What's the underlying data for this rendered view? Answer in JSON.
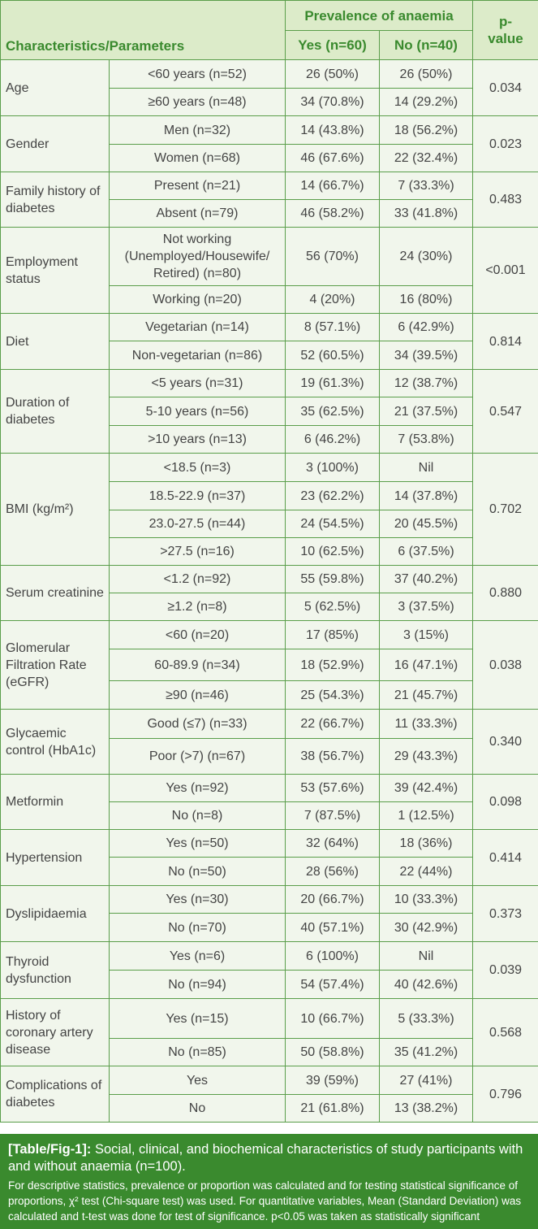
{
  "header": {
    "characteristics": "Characteristics/Parameters",
    "prevalence": "Prevalence of anaemia",
    "yes": "Yes (n=60)",
    "no": "No (n=40)",
    "pvalue": "p-\nvalue"
  },
  "groups": [
    {
      "name": "Age",
      "p": "0.034",
      "rows": [
        {
          "label": "<60 years (n=52)",
          "yes": "26 (50%)",
          "no": "26 (50%)"
        },
        {
          "label": "≥60 years (n=48)",
          "yes": "34 (70.8%)",
          "no": "14 (29.2%)"
        }
      ]
    },
    {
      "name": "Gender",
      "p": "0.023",
      "rows": [
        {
          "label": "Men (n=32)",
          "yes": "14 (43.8%)",
          "no": "18 (56.2%)"
        },
        {
          "label": "Women (n=68)",
          "yes": "46 (67.6%)",
          "no": "22 (32.4%)"
        }
      ]
    },
    {
      "name": "Family history of diabetes",
      "p": "0.483",
      "rows": [
        {
          "label": "Present (n=21)",
          "yes": "14 (66.7%)",
          "no": "7 (33.3%)"
        },
        {
          "label": "Absent (n=79)",
          "yes": "46 (58.2%)",
          "no": "33 (41.8%)"
        }
      ]
    },
    {
      "name": "Employment status",
      "p": "<0.001",
      "rows": [
        {
          "label": "Not working (Unemployed/Housewife/ Retired) (n=80)",
          "yes": "56 (70%)",
          "no": "24 (30%)"
        },
        {
          "label": "Working (n=20)",
          "yes": "4 (20%)",
          "no": "16 (80%)"
        }
      ]
    },
    {
      "name": "Diet",
      "p": "0.814",
      "rows": [
        {
          "label": "Vegetarian (n=14)",
          "yes": "8 (57.1%)",
          "no": "6 (42.9%)"
        },
        {
          "label": "Non-vegetarian (n=86)",
          "yes": "52 (60.5%)",
          "no": "34 (39.5%)"
        }
      ]
    },
    {
      "name": "Duration of diabetes",
      "p": "0.547",
      "rows": [
        {
          "label": "<5 years (n=31)",
          "yes": "19 (61.3%)",
          "no": "12 (38.7%)"
        },
        {
          "label": "5-10 years (n=56)",
          "yes": "35 (62.5%)",
          "no": "21 (37.5%)"
        },
        {
          "label": ">10 years (n=13)",
          "yes": "6 (46.2%)",
          "no": "7 (53.8%)"
        }
      ]
    },
    {
      "name": "BMI (kg/m²)",
      "p": "0.702",
      "rows": [
        {
          "label": "<18.5 (n=3)",
          "yes": "3 (100%)",
          "no": "Nil"
        },
        {
          "label": "18.5-22.9 (n=37)",
          "yes": "23 (62.2%)",
          "no": "14 (37.8%)"
        },
        {
          "label": "23.0-27.5 (n=44)",
          "yes": "24 (54.5%)",
          "no": "20 (45.5%)"
        },
        {
          "label": ">27.5 (n=16)",
          "yes": "10 (62.5%)",
          "no": "6 (37.5%)"
        }
      ]
    },
    {
      "name": "Serum creatinine",
      "p": "0.880",
      "rows": [
        {
          "label": "<1.2 (n=92)",
          "yes": "55 (59.8%)",
          "no": "37 (40.2%)"
        },
        {
          "label": "≥1.2 (n=8)",
          "yes": "5 (62.5%)",
          "no": "3 (37.5%)"
        }
      ]
    },
    {
      "name": "Glomerular Filtration Rate (eGFR)",
      "p": "0.038",
      "rows": [
        {
          "label": "<60 (n=20)",
          "yes": "17 (85%)",
          "no": "3 (15%)"
        },
        {
          "label": "60-89.9 (n=34)",
          "yes": "18 (52.9%)",
          "no": "16 (47.1%)"
        },
        {
          "label": "≥90 (n=46)",
          "yes": "25 (54.3%)",
          "no": "21 (45.7%)"
        }
      ]
    },
    {
      "name": "Glycaemic control (HbA1c)",
      "p": "0.340",
      "rows": [
        {
          "label": "Good (≤7) (n=33)",
          "yes": "22 (66.7%)",
          "no": "11 (33.3%)"
        },
        {
          "label": "Poor (>7) (n=67)",
          "yes": "38 (56.7%)",
          "no": "29 (43.3%)"
        }
      ]
    },
    {
      "name": "Metformin",
      "p": "0.098",
      "rows": [
        {
          "label": "Yes (n=92)",
          "yes": "53 (57.6%)",
          "no": "39 (42.4%)"
        },
        {
          "label": "No (n=8)",
          "yes": "7 (87.5%)",
          "no": "1 (12.5%)"
        }
      ]
    },
    {
      "name": "Hypertension",
      "p": "0.414",
      "rows": [
        {
          "label": "Yes (n=50)",
          "yes": "32 (64%)",
          "no": "18 (36%)"
        },
        {
          "label": "No (n=50)",
          "yes": "28 (56%)",
          "no": "22 (44%)"
        }
      ]
    },
    {
      "name": "Dyslipidaemia",
      "p": "0.373",
      "rows": [
        {
          "label": "Yes (n=30)",
          "yes": "20 (66.7%)",
          "no": "10 (33.3%)"
        },
        {
          "label": "No (n=70)",
          "yes": "40 (57.1%)",
          "no": "30 (42.9%)"
        }
      ]
    },
    {
      "name": "Thyroid dysfunction",
      "p": "0.039",
      "rows": [
        {
          "label": "Yes (n=6)",
          "yes": "6 (100%)",
          "no": "Nil"
        },
        {
          "label": "No (n=94)",
          "yes": "54 (57.4%)",
          "no": "40 (42.6%)"
        }
      ]
    },
    {
      "name": "History of coronary artery disease",
      "p": "0.568",
      "rows": [
        {
          "label": "Yes (n=15)",
          "yes": "10 (66.7%)",
          "no": "5 (33.3%)"
        },
        {
          "label": "No (n=85)",
          "yes": "50 (58.8%)",
          "no": "35 (41.2%)"
        }
      ]
    },
    {
      "name": "Complications of diabetes",
      "p": "0.796",
      "rows": [
        {
          "label": "Yes",
          "yes": "39 (59%)",
          "no": "27 (41%)"
        },
        {
          "label": "No",
          "yes": "21 (61.8%)",
          "no": "13 (38.2%)"
        }
      ]
    }
  ],
  "caption": {
    "label": "[Table/Fig-1]:",
    "title": " Social, clinical, and biochemical characteristics of study participants with and without anaemia (n=100).",
    "note": "For descriptive statistics, prevalence or proportion was calculated and for testing statistical significance of proportions, χ² test (Chi-square test) was used. For quantitative variables, Mean (Standard Deviation) was calculated and t-test was done for test of significance. p<0.05 was taken as statistically significant"
  },
  "colors": {
    "border": "#5a9e4a",
    "header_bg": "#dcebc9",
    "header_text": "#3a8a2e",
    "caption_bg": "#3a8a2e"
  }
}
